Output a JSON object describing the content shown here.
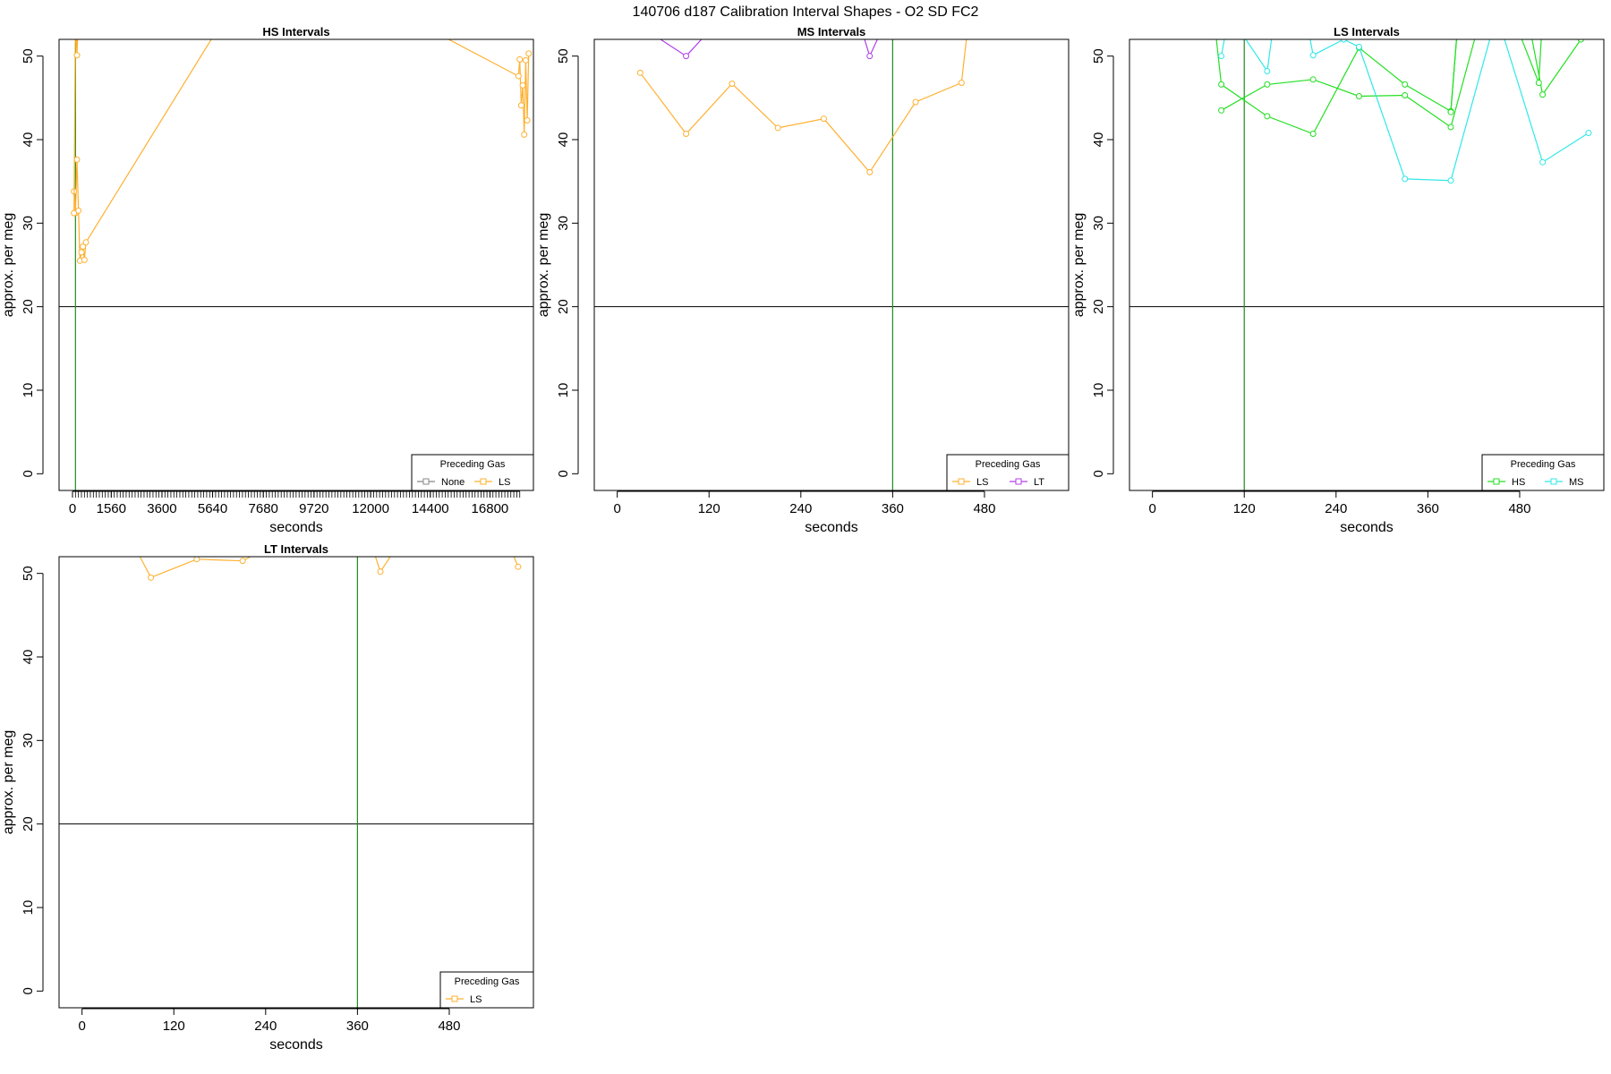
{
  "figure_title": "140706   d187   Calibration Interval Shapes - O2 SD FC2",
  "colors": {
    "LS": "#FFB030",
    "LT": "#B040E8",
    "HS": "#22E022",
    "MS": "#30E8E8",
    "None": "#888888",
    "green_vline": "#1E8C1E",
    "hline": "#000000"
  },
  "chart_data": [
    {
      "type": "line",
      "title": "HS Intervals",
      "xlabel": "seconds",
      "ylabel": "approx. per meg",
      "xlim": [
        -540,
        18550
      ],
      "ylim": [
        -2,
        52
      ],
      "xticks": [
        0,
        1560,
        3600,
        5640,
        7680,
        9720,
        12000,
        14400,
        16800
      ],
      "minor_xtick_range": [
        0,
        18000,
        120
      ],
      "yticks": [
        0,
        10,
        20,
        30,
        40,
        50
      ],
      "hline": 20,
      "vline": 120,
      "legend": {
        "title": "Preceding Gas",
        "position": "bottom-right",
        "entries": [
          "None",
          "LS"
        ]
      },
      "series": [
        {
          "name": "LS",
          "x": [
            60,
            120,
            180,
            240,
            300,
            360,
            420,
            480,
            540,
            6000,
            14500,
            17950,
            18000,
            18060,
            18120,
            18180,
            18240,
            18300,
            18360
          ],
          "y": [
            33.8,
            31.2,
            37.6,
            31.5,
            25.5,
            26.5,
            27.2,
            25.6,
            27.7,
            54,
            53,
            47.6,
            49.6,
            44.1,
            46.5,
            40.6,
            49.5,
            42.3,
            50.3
          ]
        },
        {
          "name": "LS",
          "x": [
            60,
            120,
            180,
            240,
            300,
            360
          ],
          "y": [
            31.2,
            55,
            50.1,
            55,
            55,
            55
          ]
        }
      ]
    },
    {
      "type": "line",
      "title": "MS Intervals",
      "xlabel": "seconds",
      "ylabel": "approx. per meg",
      "xlim": [
        -30,
        590
      ],
      "ylim": [
        -2,
        52
      ],
      "xticks": [
        0,
        120,
        240,
        360,
        480
      ],
      "yticks": [
        0,
        10,
        20,
        30,
        40,
        50
      ],
      "hline": 20,
      "vline": 360,
      "legend": {
        "title": "Preceding Gas",
        "position": "bottom-right",
        "entries": [
          "LS",
          "LT"
        ]
      },
      "series": [
        {
          "name": "LS",
          "x": [
            30,
            90,
            150,
            210,
            270,
            330,
            390,
            450,
            460
          ],
          "y": [
            48.0,
            40.7,
            46.7,
            41.4,
            42.5,
            36.1,
            44.5,
            46.8,
            55
          ]
        },
        {
          "name": "LT",
          "x": [
            40,
            90,
            120,
            320,
            330,
            345
          ],
          "y": [
            53,
            50.0,
            53,
            53,
            50.0,
            53
          ]
        }
      ]
    },
    {
      "type": "line",
      "title": "LS Intervals",
      "xlabel": "seconds",
      "ylabel": "approx. per meg",
      "xlim": [
        -30,
        590
      ],
      "ylim": [
        -2,
        52
      ],
      "xticks": [
        0,
        120,
        240,
        360,
        480
      ],
      "yticks": [
        0,
        10,
        20,
        30,
        40,
        50
      ],
      "hline": 20,
      "vline": 120,
      "legend": {
        "title": "Preceding Gas",
        "position": "bottom-right",
        "entries": [
          "HS",
          "MS"
        ]
      },
      "series": [
        {
          "name": "HS",
          "x": [
            80,
            90,
            150,
            210,
            270,
            330,
            390,
            400
          ],
          "y": [
            55,
            46.6,
            42.8,
            40.7,
            51.0,
            46.6,
            43.4,
            55
          ]
        },
        {
          "name": "HS",
          "x": [
            90,
            150,
            210,
            270,
            330,
            390,
            430,
            490,
            510,
            560
          ],
          "y": [
            43.5,
            46.6,
            47.2,
            45.2,
            45.3,
            41.5,
            55,
            55,
            45.4,
            52
          ]
        },
        {
          "name": "HS",
          "x": [
            390,
            400,
            470,
            505,
            510
          ],
          "y": [
            43.3,
            55,
            55,
            46.8,
            55
          ]
        },
        {
          "name": "MS",
          "x": [
            90,
            100,
            150,
            160,
            200,
            210,
            250,
            270,
            330,
            390,
            450,
            510,
            570
          ],
          "y": [
            50.0,
            55,
            48.2,
            55,
            55,
            50.1,
            52,
            51.1,
            35.3,
            35.1,
            55,
            37.3,
            40.8
          ]
        }
      ]
    },
    {
      "type": "line",
      "title": "LT Intervals",
      "xlabel": "seconds",
      "ylabel": "approx. per meg",
      "xlim": [
        -30,
        590
      ],
      "ylim": [
        -2,
        52
      ],
      "xticks": [
        0,
        120,
        240,
        360,
        480
      ],
      "yticks": [
        0,
        10,
        20,
        30,
        40,
        50
      ],
      "hline": 20,
      "vline": 360,
      "legend": {
        "title": "Preceding Gas",
        "position": "bottom-right",
        "entries": [
          "LS"
        ]
      },
      "series": [
        {
          "name": "LS",
          "x": [
            70,
            90,
            150,
            210,
            240,
            380,
            390,
            410,
            560,
            570
          ],
          "y": [
            53,
            49.5,
            51.7,
            51.5,
            53,
            53,
            50.2,
            53,
            53,
            50.8
          ]
        }
      ]
    }
  ]
}
